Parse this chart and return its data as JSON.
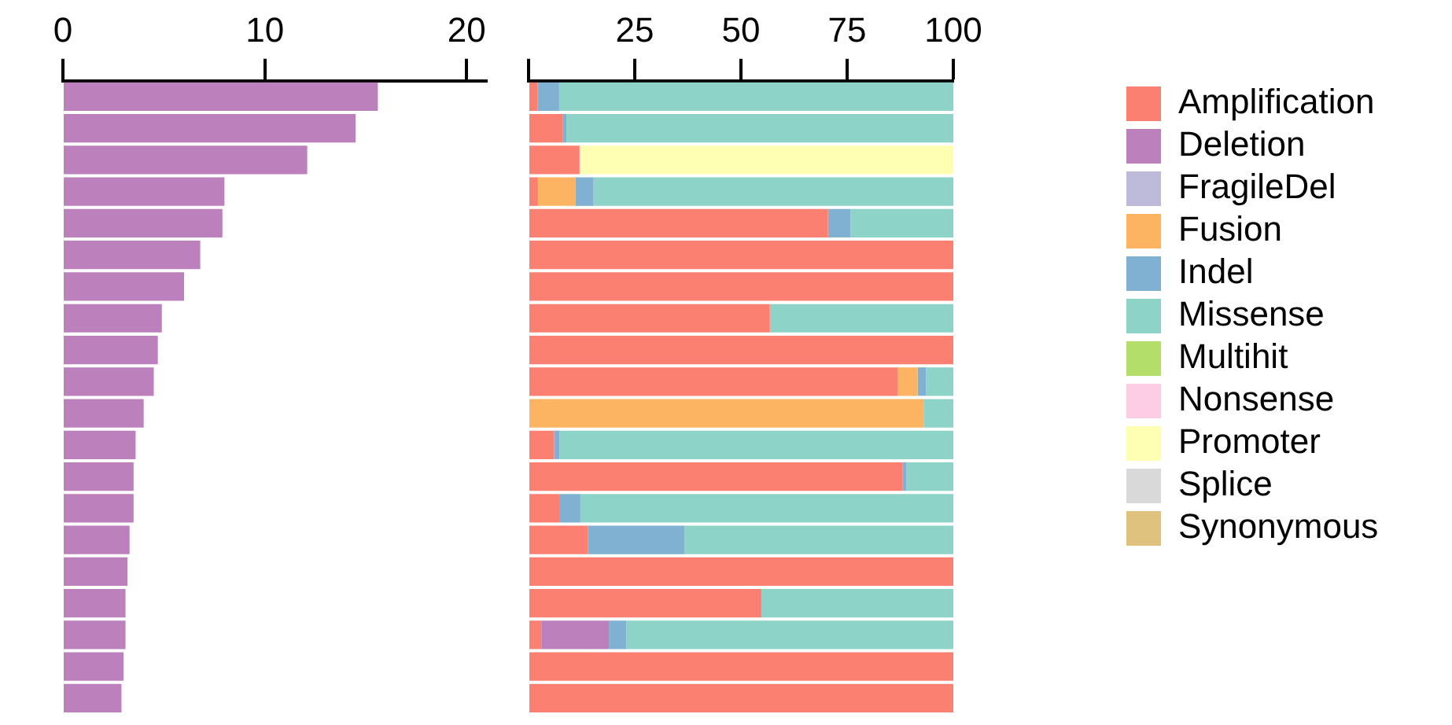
{
  "chart_data": [
    {
      "type": "bar",
      "orientation": "horizontal",
      "categories": [
        null,
        null,
        null,
        null,
        null,
        null,
        null,
        null,
        null,
        null,
        null,
        null,
        null,
        null,
        null,
        null,
        null,
        null,
        null,
        null
      ],
      "values": [
        15.6,
        14.5,
        12.1,
        8.0,
        7.9,
        6.8,
        6.0,
        4.9,
        4.7,
        4.5,
        4.0,
        3.6,
        3.5,
        3.5,
        3.3,
        3.2,
        3.1,
        3.1,
        3.0,
        2.9
      ],
      "color": "#bc80bd",
      "xlim": [
        0,
        21
      ],
      "xticks": [
        0,
        10,
        20
      ]
    },
    {
      "type": "bar",
      "orientation": "horizontal",
      "stacked": true,
      "categories": [
        null,
        null,
        null,
        null,
        null,
        null,
        null,
        null,
        null,
        null,
        null,
        null,
        null,
        null,
        null,
        null,
        null,
        null,
        null,
        null
      ],
      "series": [
        {
          "name": "Amplification",
          "color": "#fb8072",
          "values": [
            2.1,
            8.0,
            12.0,
            2.2,
            70.5,
            100,
            100,
            56.8,
            100,
            86.9,
            0,
            6.0,
            88.0,
            7.4,
            14.0,
            100,
            54.8,
            3.0,
            100,
            100
          ]
        },
        {
          "name": "Deletion",
          "color": "#bc80bd",
          "values": [
            0,
            0,
            0,
            0,
            0,
            0,
            0,
            0,
            0,
            0,
            0,
            0,
            0,
            0,
            0,
            0,
            0,
            15.9,
            0,
            0
          ]
        },
        {
          "name": "FragileDel",
          "color": "#bebada",
          "values": [
            0,
            0,
            0,
            0,
            0,
            0,
            0,
            0,
            0,
            0,
            0,
            0,
            0,
            0,
            0,
            0,
            0,
            0,
            0,
            0
          ]
        },
        {
          "name": "Fusion",
          "color": "#fdb462",
          "values": [
            0,
            0,
            0,
            8.9,
            0,
            0,
            0,
            0,
            0,
            4.7,
            93.0,
            0,
            0,
            0,
            0,
            0,
            0,
            0,
            0,
            0
          ]
        },
        {
          "name": "Indel",
          "color": "#80b1d3",
          "values": [
            5.1,
            0.9,
            0,
            4.2,
            5.3,
            0,
            0,
            0,
            0,
            2.0,
            0,
            1.3,
            1.0,
            4.8,
            22.7,
            0,
            0,
            4.1,
            0,
            0
          ]
        },
        {
          "name": "Missense",
          "color": "#8dd3c7",
          "values": [
            92.8,
            91.1,
            0,
            84.7,
            24.2,
            0,
            0,
            43.2,
            0,
            6.4,
            7.0,
            92.7,
            11.0,
            87.8,
            63.3,
            0,
            45.2,
            77.0,
            0,
            0
          ]
        },
        {
          "name": "Multihit",
          "color": "#b3de69",
          "values": [
            0,
            0,
            0,
            0,
            0,
            0,
            0,
            0,
            0,
            0,
            0,
            0,
            0,
            0,
            0,
            0,
            0,
            0,
            0,
            0
          ]
        },
        {
          "name": "Nonsense",
          "color": "#fccde5",
          "values": [
            0,
            0,
            0,
            0,
            0,
            0,
            0,
            0,
            0,
            0,
            0,
            0,
            0,
            0,
            0,
            0,
            0,
            0,
            0,
            0
          ]
        },
        {
          "name": "Promoter",
          "color": "#ffffb3",
          "values": [
            0,
            0,
            88.0,
            0,
            0,
            0,
            0,
            0,
            0,
            0,
            0,
            0,
            0,
            0,
            0,
            0,
            0,
            0,
            0,
            0
          ]
        },
        {
          "name": "Splice",
          "color": "#d9d9d9",
          "values": [
            0,
            0,
            0,
            0,
            0,
            0,
            0,
            0,
            0,
            0,
            0,
            0,
            0,
            0,
            0,
            0,
            0,
            0,
            0,
            0
          ]
        },
        {
          "name": "Synonymous",
          "color": "#dfc27d",
          "values": [
            0,
            0,
            0,
            0,
            0,
            0,
            0,
            0,
            0,
            0,
            0,
            0,
            0,
            0,
            0,
            0,
            0,
            0,
            0,
            0
          ]
        }
      ],
      "xlim": [
        0,
        100
      ],
      "xticks": [
        {
          "value": 0,
          "label": null
        },
        25,
        50,
        75,
        100
      ],
      "legend": "right"
    }
  ]
}
